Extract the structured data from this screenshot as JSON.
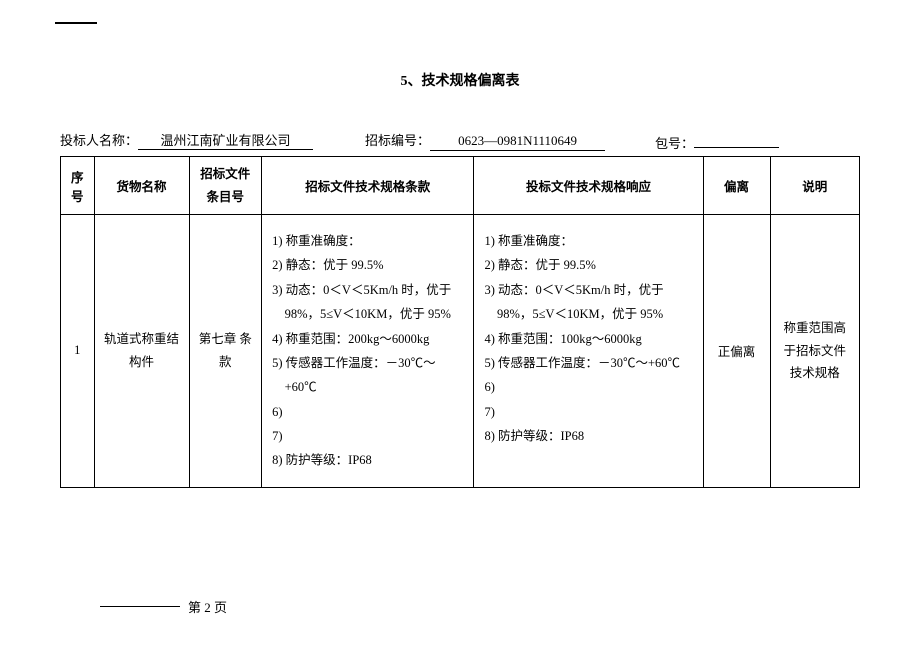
{
  "title": "5、技术规格偏离表",
  "header": {
    "bidder_label": "投标人名称：",
    "bidder_value": "温州江南矿业有限公司",
    "bidno_label": "招标编号：",
    "bidno_value": "0623—0981N1110649",
    "pkg_label": "包号：",
    "pkg_value": ""
  },
  "columns": {
    "seq": "序号",
    "name": "货物名称",
    "item": "招标文件条目号",
    "spec_req": "招标文件技术规格条款",
    "spec_resp": "投标文件技术规格响应",
    "deviation": "偏离",
    "note": "说明"
  },
  "row": {
    "seq": "1",
    "name": "轨道式称重结构件",
    "item": "第七章 条款",
    "spec_req": [
      "1) 称重准确度：",
      "2) 静态：优于 99.5%",
      "3) 动态：0＜V＜5Km/h 时，优于98%，5≤V＜10KM，优于 95%",
      "4) 称重范围：200kg～6000kg",
      "5) 传感器工作温度：－30℃～+60℃",
      "6)",
      "7)",
      "8) 防护等级：IP68"
    ],
    "spec_resp": [
      "1)  称重准确度：",
      "2)  静态：优于 99.5%",
      "3)  动态：0＜V＜5Km/h 时，优于98%，5≤V＜10KM，优于 95%",
      "4)  称重范围：100kg～6000kg",
      "5)  传感器工作温度：－30℃～+60℃",
      "6)",
      "7)",
      "8)  防护等级：IP68"
    ],
    "deviation": "正偏离",
    "note": "称重范围高于招标文件技术规格"
  },
  "footer": "第 2 页",
  "style": {
    "font_family": "SimSun",
    "body_fontsize": 13,
    "title_fontsize": 14,
    "border_color": "#000000",
    "background": "#ffffff",
    "line_height": 1.95
  }
}
